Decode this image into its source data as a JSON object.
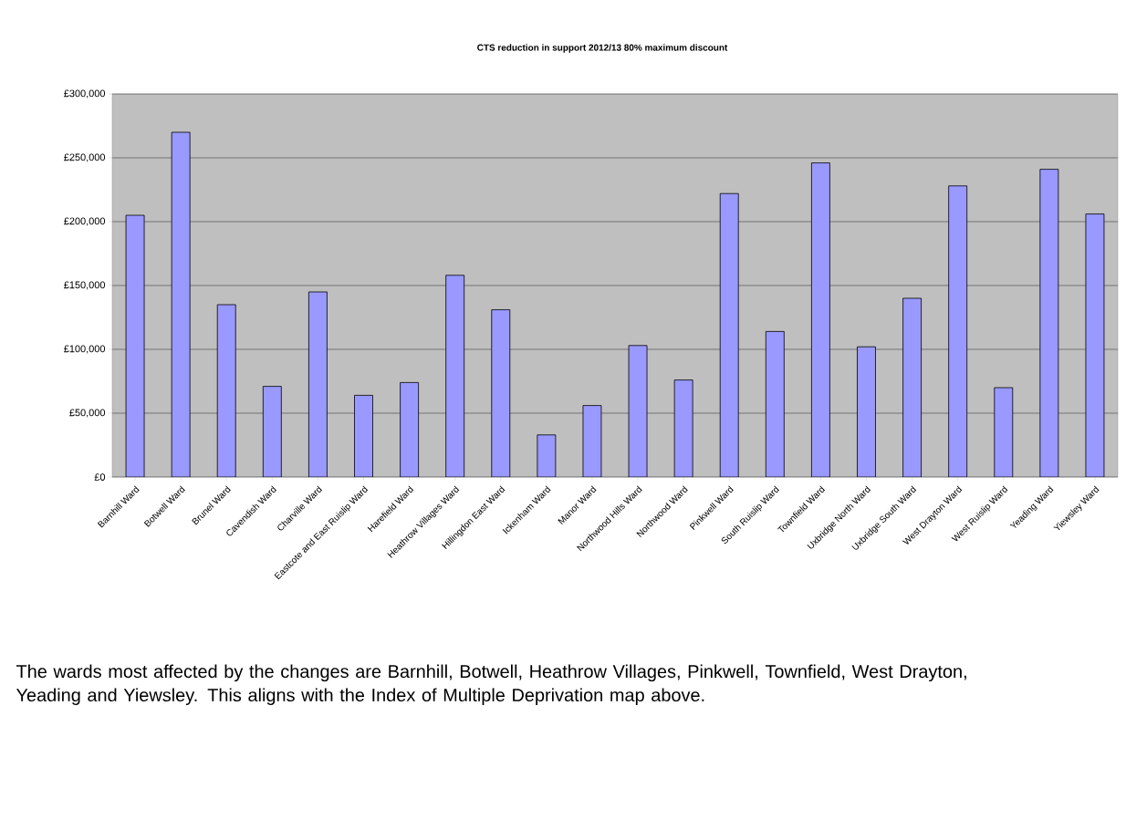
{
  "chart_data": {
    "type": "bar",
    "title": "CTS reduction in support 2012/13 80% maximum discount",
    "categories": [
      "Barnhill Ward",
      "Botwell Ward",
      "Brunel Ward",
      "Cavendish Ward",
      "Charville Ward",
      "Eastcote and East Ruislip Ward",
      "Harefield Ward",
      "Heathrow Villages Ward",
      "Hillingdon East Ward",
      "Ickenham Ward",
      "Manor Ward",
      "Northwood Hills Ward",
      "Northwood Ward",
      "Pinkwell Ward",
      "South Ruislip Ward",
      "Townfield Ward",
      "Uxbridge North Ward",
      "Uxbridge South Ward",
      "West Drayton Ward",
      "West Ruislip Ward",
      "Yeading Ward",
      "Yiewsley Ward"
    ],
    "values": [
      205000,
      270000,
      135000,
      71000,
      145000,
      64000,
      74000,
      158000,
      131000,
      33000,
      56000,
      103000,
      76000,
      222000,
      114000,
      246000,
      102000,
      140000,
      228000,
      70000,
      241000,
      206000
    ],
    "color": "#9999ff",
    "ylim": [
      0,
      300000
    ],
    "yticks": [
      {
        "value": 0,
        "label": "£0"
      },
      {
        "value": 50000,
        "label": "£50,000"
      },
      {
        "value": 100000,
        "label": "£100,000"
      },
      {
        "value": 150000,
        "label": "£150,000"
      },
      {
        "value": 200000,
        "label": "£200,000"
      },
      {
        "value": 250000,
        "label": "£250,000"
      },
      {
        "value": 300000,
        "label": "£300,000"
      }
    ],
    "grid": "y",
    "annotations": [
      "The wards most affected by the changes are Barnhill, Botwell, Heathrow Villages, Pinkwell, Townfield, West Drayton, Yeading and Yiewsley.  This aligns with the Index of Multiple Deprivation map above."
    ]
  }
}
